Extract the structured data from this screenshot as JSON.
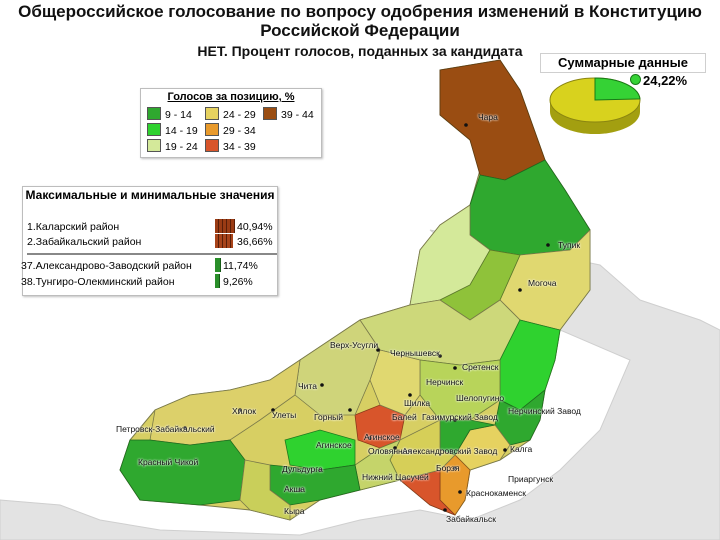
{
  "title": "Общероссийское голосование по вопросу одобрения изменений в Конституцию Российской Федерации",
  "subtitle": "НЕТ. Процент голосов, поданных за кандидата",
  "legend": {
    "title": "Голосов за позицию, %",
    "items": [
      {
        "label": "9 - 14",
        "color": "#2fa82f"
      },
      {
        "label": "14 - 19",
        "color": "#2fd22f"
      },
      {
        "label": "19 - 24",
        "color": "#d4e99a"
      },
      {
        "label": "24 - 29",
        "color": "#e6d260"
      },
      {
        "label": "29 - 34",
        "color": "#e89a2c"
      },
      {
        "label": "34 - 39",
        "color": "#d8552b"
      },
      {
        "label": "39 - 44",
        "color": "#9a4d12"
      }
    ]
  },
  "summary": {
    "title": "Суммарные данные",
    "value_label": "24,22%",
    "value": 24.22,
    "color_main": "#d8d21e",
    "color_slice": "#35d235"
  },
  "minmax": {
    "title": "Максимальные и минимальные значения",
    "max_rows": [
      {
        "label": "1.Каларский район",
        "value_label": "40,94%",
        "value": 40.94,
        "color": "#9a3b14"
      },
      {
        "label": "2.Забайкальский район",
        "value_label": "36,66%",
        "value": 36.66,
        "color": "#a8431a"
      }
    ],
    "min_rows": [
      {
        "label": "37.Александрово-Заводский район",
        "value_label": "11,74%",
        "value": 11.74,
        "color": "#2a8f2a"
      },
      {
        "label": "38.Тунгиро-Олекминский район",
        "value_label": "9,26%",
        "value": 9.26,
        "color": "#2a8f2a"
      }
    ]
  },
  "map_labels": [
    "Чара",
    "Тупик",
    "Могоча",
    "Верх-Усугли",
    "Чернышевск",
    "Сретенск",
    "Нерчинск",
    "Чита",
    "Шелопугино",
    "Хилок",
    "Улеты",
    "Шилка",
    "Нерчинский Завод",
    "Петровск-Забайкальский",
    "Горный",
    "Балей",
    "Газимурский Завод",
    "Агинское",
    "Агинское",
    "Александровский Завод",
    "Калга",
    "Красный Чикой",
    "Дульдурга",
    "Оловянная",
    "Борзя",
    "Приаргунск",
    "Нижний Цасучей",
    "Акша",
    "Краснокаменск",
    "Кыра",
    "Забайкальск"
  ]
}
